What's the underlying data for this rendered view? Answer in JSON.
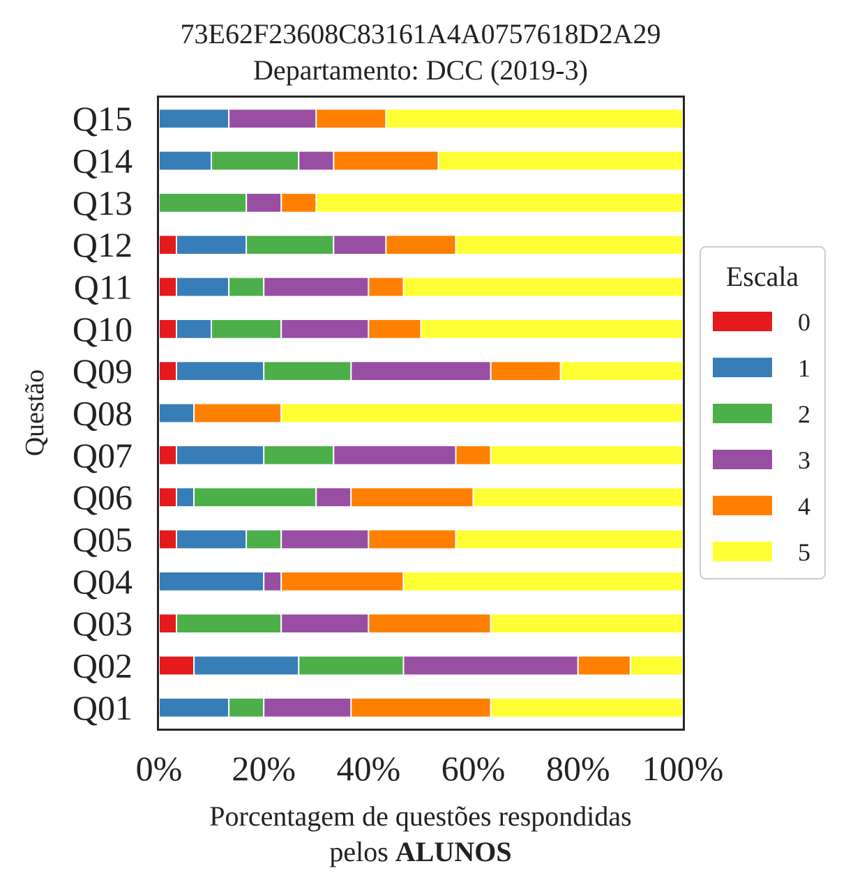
{
  "chart_data": {
    "type": "bar",
    "orientation": "horizontal",
    "stacked": true,
    "title": "73E62F23608C83161A4A0757618D2A29",
    "subtitle": "Departamento: DCC (2019-3)",
    "xlabel_line1": "Porcentagem de questões respondidas",
    "xlabel_line2_prefix": "pelos ",
    "xlabel_line2_bold": "ALUNOS",
    "ylabel": "Questão",
    "xlim": [
      0,
      100
    ],
    "x_ticks": [
      0,
      20,
      40,
      60,
      80,
      100
    ],
    "x_tick_labels": [
      "0%",
      "20%",
      "40%",
      "60%",
      "80%",
      "100%"
    ],
    "categories": [
      "Q01",
      "Q02",
      "Q03",
      "Q04",
      "Q05",
      "Q06",
      "Q07",
      "Q08",
      "Q09",
      "Q10",
      "Q11",
      "Q12",
      "Q13",
      "Q14",
      "Q15"
    ],
    "legend": {
      "title": "Escala",
      "position": "right"
    },
    "grid": false,
    "series": [
      {
        "name": "0",
        "color": "#e41a1c",
        "values": [
          0,
          6.67,
          3.33,
          0,
          3.33,
          3.33,
          3.33,
          0,
          3.33,
          3.33,
          3.33,
          3.33,
          0,
          0,
          0
        ]
      },
      {
        "name": "1",
        "color": "#377eb8",
        "values": [
          13.33,
          20,
          0,
          20,
          13.33,
          3.33,
          16.67,
          6.67,
          16.67,
          6.67,
          10,
          13.33,
          0,
          10,
          13.33
        ]
      },
      {
        "name": "2",
        "color": "#4daf4a",
        "values": [
          6.67,
          20,
          20,
          0,
          6.67,
          23.33,
          13.33,
          0,
          16.67,
          13.33,
          6.67,
          16.67,
          16.67,
          16.67,
          0
        ]
      },
      {
        "name": "3",
        "color": "#984ea3",
        "values": [
          16.67,
          33.33,
          16.67,
          3.33,
          16.67,
          6.67,
          23.33,
          0,
          26.67,
          16.67,
          20,
          10,
          6.67,
          6.67,
          16.67
        ]
      },
      {
        "name": "4",
        "color": "#ff7f00",
        "values": [
          26.67,
          10,
          23.33,
          23.33,
          16.67,
          23.33,
          6.67,
          16.67,
          13.33,
          10,
          6.67,
          13.33,
          6.67,
          20,
          13.33
        ]
      },
      {
        "name": "5",
        "color": "#ffff33",
        "values": [
          36.66,
          10,
          36.67,
          53.37,
          43.33,
          40.01,
          36.67,
          76.66,
          23.33,
          50,
          53.33,
          43.34,
          70,
          46.66,
          56.67
        ]
      }
    ]
  }
}
